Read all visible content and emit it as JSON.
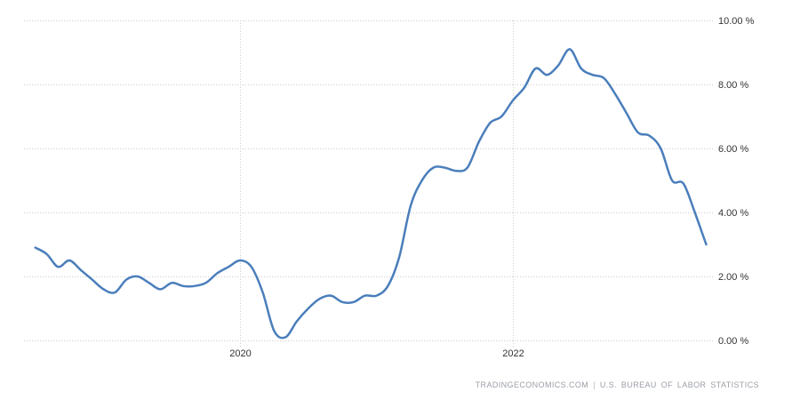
{
  "chart_data": {
    "type": "line",
    "title": "",
    "xlabel": "",
    "ylabel": "",
    "ylim": [
      0,
      10
    ],
    "grid": "dotted",
    "legend_position": "none",
    "y_axis": {
      "side": "right",
      "ticks": [
        {
          "value": 0,
          "label": "0.00 %"
        },
        {
          "value": 2,
          "label": "2.00 %"
        },
        {
          "value": 4,
          "label": "4.00 %"
        },
        {
          "value": 6,
          "label": "6.00 %"
        },
        {
          "value": 8,
          "label": "8.00 %"
        },
        {
          "value": 10,
          "label": "10.00 %"
        }
      ]
    },
    "x_axis": {
      "ticks": [
        {
          "label": "2020",
          "x_index": 18
        },
        {
          "label": "2022",
          "x_index": 42
        }
      ]
    },
    "series": [
      {
        "color": "#4a7ebb",
        "x": [
          "2018-07",
          "2018-08",
          "2018-09",
          "2018-10",
          "2018-11",
          "2018-12",
          "2019-01",
          "2019-02",
          "2019-03",
          "2019-04",
          "2019-05",
          "2019-06",
          "2019-07",
          "2019-08",
          "2019-09",
          "2019-10",
          "2019-11",
          "2019-12",
          "2020-01",
          "2020-02",
          "2020-03",
          "2020-04",
          "2020-05",
          "2020-06",
          "2020-07",
          "2020-08",
          "2020-09",
          "2020-10",
          "2020-11",
          "2020-12",
          "2021-01",
          "2021-02",
          "2021-03",
          "2021-04",
          "2021-05",
          "2021-06",
          "2021-07",
          "2021-08",
          "2021-09",
          "2021-10",
          "2021-11",
          "2021-12",
          "2022-01",
          "2022-02",
          "2022-03",
          "2022-04",
          "2022-05",
          "2022-06",
          "2022-07",
          "2022-08",
          "2022-09",
          "2022-10",
          "2022-11",
          "2022-12",
          "2023-01",
          "2023-02",
          "2023-03",
          "2023-04",
          "2023-05",
          "2023-06"
        ],
        "values": [
          2.9,
          2.7,
          2.3,
          2.5,
          2.2,
          1.9,
          1.6,
          1.5,
          1.9,
          2.0,
          1.8,
          1.6,
          1.8,
          1.7,
          1.7,
          1.8,
          2.1,
          2.3,
          2.5,
          2.3,
          1.5,
          0.3,
          0.1,
          0.6,
          1.0,
          1.3,
          1.4,
          1.2,
          1.2,
          1.4,
          1.4,
          1.7,
          2.6,
          4.2,
          5.0,
          5.4,
          5.4,
          5.3,
          5.4,
          6.2,
          6.8,
          7.0,
          7.5,
          7.9,
          8.5,
          8.3,
          8.6,
          9.1,
          8.5,
          8.3,
          8.2,
          7.7,
          7.1,
          6.5,
          6.4,
          6.0,
          5.0,
          4.9,
          4.0,
          3.0
        ]
      }
    ]
  },
  "colors": {
    "line": "#4a7ebb",
    "grid": "#cccccc",
    "axis_label": "#333333",
    "footer_text": "#9a9fa6",
    "background": "#ffffff"
  },
  "footer": {
    "brand": "TRADINGECONOMICS.COM",
    "separator": "|",
    "source": "U.S. BUREAU OF LABOR STATISTICS"
  }
}
